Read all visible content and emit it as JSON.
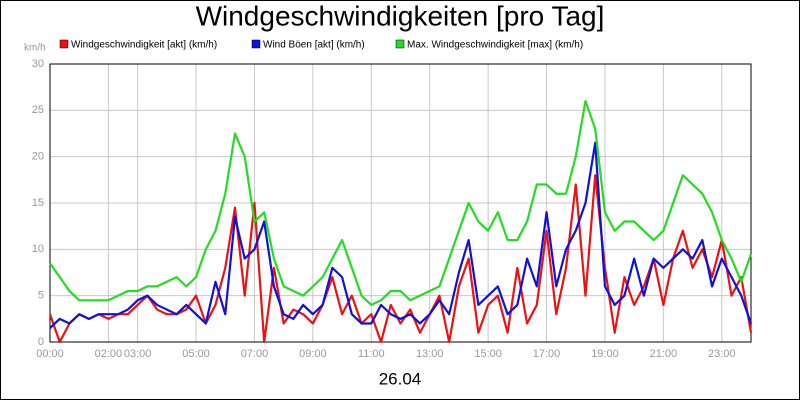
{
  "chart_data": {
    "type": "line",
    "title": "Windgeschwindigkeiten [pro Tag]",
    "y_label": "km/h",
    "x_label": "26.04",
    "xlim": [
      0,
      1440
    ],
    "ylim": [
      0,
      30
    ],
    "yticks": [
      0,
      5,
      10,
      15,
      20,
      25,
      30
    ],
    "xticks": [
      {
        "value": 0,
        "label": "00:00"
      },
      {
        "value": 120,
        "label": "02:00"
      },
      {
        "value": 180,
        "label": "03:00"
      },
      {
        "value": 300,
        "label": "05:00"
      },
      {
        "value": 420,
        "label": "07:00"
      },
      {
        "value": 540,
        "label": "09:00"
      },
      {
        "value": 660,
        "label": "11:00"
      },
      {
        "value": 780,
        "label": "13:00"
      },
      {
        "value": 900,
        "label": "15:00"
      },
      {
        "value": 1020,
        "label": "17:00"
      },
      {
        "value": 1140,
        "label": "19:00"
      },
      {
        "value": 1260,
        "label": "21:00"
      },
      {
        "value": 1380,
        "label": "23:00"
      }
    ],
    "grid": true,
    "x": [
      0,
      20,
      40,
      60,
      80,
      100,
      120,
      140,
      160,
      180,
      200,
      220,
      240,
      260,
      280,
      300,
      320,
      340,
      360,
      380,
      400,
      420,
      440,
      460,
      480,
      500,
      520,
      540,
      560,
      580,
      600,
      620,
      640,
      660,
      680,
      700,
      720,
      740,
      760,
      780,
      800,
      820,
      840,
      860,
      880,
      900,
      920,
      940,
      960,
      980,
      1000,
      1020,
      1040,
      1060,
      1080,
      1100,
      1120,
      1140,
      1160,
      1180,
      1200,
      1220,
      1240,
      1260,
      1280,
      1300,
      1320,
      1340,
      1360,
      1380,
      1400,
      1420,
      1440
    ],
    "series": [
      {
        "name": "Windgeschwindigkeit [akt] (km/h)",
        "color": "#ee1111",
        "values": [
          3,
          0,
          2,
          3,
          2.5,
          3,
          2.5,
          3,
          3,
          4,
          5,
          3.5,
          3,
          3,
          3.5,
          5,
          2,
          4,
          8,
          14.5,
          5,
          15,
          0,
          8,
          2,
          3.5,
          3,
          2,
          4,
          7,
          3,
          5,
          2,
          3,
          0,
          4,
          2,
          3.5,
          1,
          3,
          5,
          0,
          6,
          9,
          1,
          4,
          5,
          1,
          8,
          2,
          4,
          12,
          3,
          8,
          17,
          5,
          18,
          8,
          1,
          7,
          4,
          6,
          9,
          4,
          9,
          12,
          8,
          10,
          7,
          11,
          5,
          7,
          1
        ]
      },
      {
        "name": "Wind Böen [akt] (km/h)",
        "color": "#1111dd",
        "values": [
          1.5,
          2.5,
          2,
          3,
          2.5,
          3,
          3,
          3,
          3.5,
          4.5,
          5,
          4,
          3.5,
          3,
          4,
          3,
          2,
          6.5,
          3,
          13.5,
          9,
          10,
          13,
          6,
          3,
          2.5,
          4,
          3,
          4,
          8,
          7,
          3,
          2,
          2,
          4,
          3,
          2.5,
          3,
          2,
          3,
          4.5,
          3,
          7.5,
          11,
          4,
          5,
          6,
          3,
          4,
          9,
          6,
          14,
          6,
          10,
          12,
          15,
          21.5,
          6,
          4,
          5,
          9,
          5,
          9,
          8,
          9,
          10,
          9,
          11,
          6,
          9,
          7,
          5,
          2
        ]
      },
      {
        "name": "Max. Windgeschwindigkeit [max] (km/h)",
        "color": "#22dd22",
        "values": [
          8.5,
          7,
          5.5,
          4.5,
          4.5,
          4.5,
          4.5,
          5,
          5.5,
          5.5,
          6,
          6,
          6.5,
          7,
          6,
          7,
          10,
          12,
          16,
          22.5,
          20,
          13,
          14,
          9,
          6,
          5.5,
          5,
          6,
          7,
          9,
          11,
          8,
          5,
          4,
          4.5,
          5.5,
          5.5,
          4.5,
          5,
          5.5,
          6,
          9,
          12,
          15,
          13,
          12,
          14,
          11,
          11,
          13,
          17,
          17,
          16,
          16,
          20,
          26,
          23,
          14,
          12,
          13,
          13,
          12,
          11,
          12,
          15,
          18,
          17,
          16,
          14,
          11,
          9,
          6.5,
          9.5
        ]
      }
    ]
  }
}
